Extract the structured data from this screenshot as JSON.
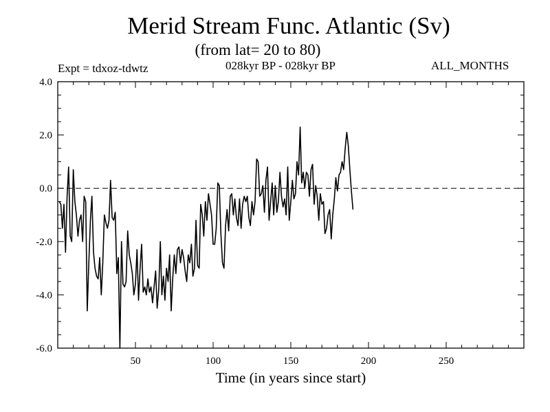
{
  "chart_data": {
    "type": "line",
    "title": "Merid Stream Func. Atlantic (Sv)",
    "subtitle": "(from lat= 20 to 80)",
    "annotations": {
      "left": "Expt = tdxoz-tdwtz",
      "center": "028kyr BP - 028kyr BP",
      "right": "ALL_MONTHS"
    },
    "xlabel": "Time (in years since start)",
    "ylabel": "",
    "xlim": [
      0,
      300
    ],
    "ylim": [
      -6.0,
      4.0
    ],
    "xticks": [
      50,
      100,
      150,
      200,
      250
    ],
    "xtick_labels": [
      "50",
      "100",
      "150",
      "200",
      "250"
    ],
    "yticks": [
      -6.0,
      -4.0,
      -2.0,
      0.0,
      2.0,
      4.0
    ],
    "ytick_labels": [
      "-6.0",
      "-4.0",
      "-2.0",
      "0.0",
      "2.0",
      "4.0"
    ],
    "reference_line": {
      "y": 0.0,
      "style": "dashed"
    },
    "grid": false,
    "series": [
      {
        "x_start": 1,
        "x_step": 1,
        "values": [
          -0.5,
          -0.6,
          -1.5,
          -0.6,
          -2.4,
          -0.3,
          0.8,
          -1.8,
          -2.0,
          0.7,
          -0.5,
          -1.0,
          -1.8,
          -1.2,
          -1.0,
          -2.0,
          -0.3,
          -0.5,
          -4.6,
          -2.8,
          -1.2,
          -0.3,
          -2.4,
          -3.0,
          -3.3,
          -3.4,
          -2.6,
          -4.0,
          -2.8,
          -1.0,
          -1.3,
          -1.5,
          -1.2,
          0.3,
          -1.1,
          -1.2,
          -0.9,
          -3.2,
          -2.6,
          -6.0,
          -2.0,
          -3.6,
          -3.7,
          -3.5,
          -1.6,
          -2.5,
          -2.8,
          -3.2,
          -4.0,
          -3.6,
          -2.3,
          -4.2,
          -3.0,
          -2.1,
          -3.9,
          -3.7,
          -4.0,
          -3.4,
          -3.9,
          -3.7,
          -4.3,
          -3.7,
          -3.1,
          -4.5,
          -3.8,
          -2.0,
          -4.0,
          -3.3,
          -4.2,
          -3.0,
          -3.5,
          -2.5,
          -4.6,
          -3.4,
          -2.5,
          -3.2,
          -2.3,
          -2.2,
          -2.8,
          -2.3,
          -2.6,
          -3.1,
          -3.5,
          -2.5,
          -2.8,
          -2.1,
          -3.3,
          -3.0,
          -1.2,
          -2.9,
          -3.0,
          -0.6,
          -1.0,
          -1.8,
          -0.5,
          -1.2,
          -0.2,
          -0.6,
          -1.0,
          -2.1,
          -2.1,
          -1.5,
          0.2,
          0.1,
          -1.7,
          -2.8,
          -3.0,
          -1.4,
          -0.8,
          -1.6,
          -0.3,
          -0.2,
          -1.0,
          -0.4,
          -1.1,
          -1.4,
          -0.4,
          -1.5,
          -0.6,
          -0.3,
          -0.5,
          -0.3,
          -1.1,
          -1.4,
          -0.5,
          -1.0,
          -0.5,
          1.1,
          1.0,
          -0.3,
          -0.2,
          0.1,
          -0.9,
          0.3,
          0.8,
          -1.2,
          -0.5,
          0.2,
          -1.0,
          0.1,
          -0.9,
          -0.5,
          0.6,
          -0.3,
          -0.7,
          -0.4,
          -1.0,
          0.8,
          -1.2,
          -0.5,
          0.3,
          -0.4,
          -0.2,
          1.0,
          0.5,
          2.3,
          0.2,
          0.6,
          0.0,
          0.6,
          0.5,
          -0.3,
          0.7,
          0.9,
          -0.6,
          0.1,
          -0.3,
          -1.2,
          -0.2,
          -0.6,
          -0.5,
          -1.7,
          -1.5,
          -1.0,
          -0.8,
          -1.9,
          -1.0,
          -0.4,
          0.4,
          -0.1,
          0.5,
          0.6,
          1.0,
          0.7,
          1.5,
          2.1,
          1.6,
          0.7,
          -0.1,
          -0.8
        ]
      }
    ]
  }
}
